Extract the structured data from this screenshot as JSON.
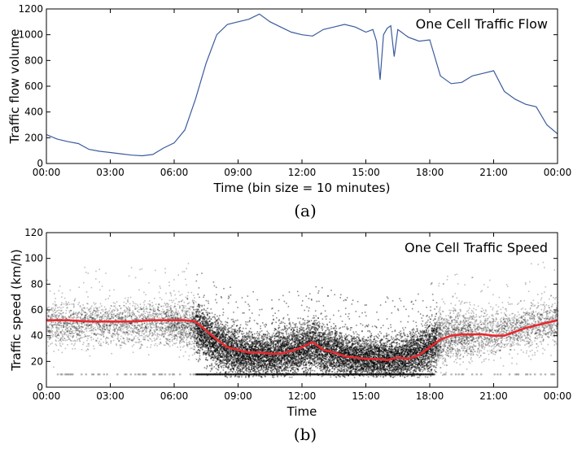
{
  "chart_data": [
    {
      "type": "line",
      "title": "One Cell Traffic Flow",
      "xlabel": "Time (bin size = 10 minutes)",
      "ylabel": "Traffic flow volume",
      "caption": "(a)",
      "xticks": [
        "00:00",
        "03:00",
        "06:00",
        "09:00",
        "12:00",
        "15:00",
        "18:00",
        "21:00",
        "00:00"
      ],
      "yticks": [
        "0",
        "200",
        "400",
        "600",
        "800",
        "1000",
        "1200"
      ],
      "xlim": [
        0,
        24
      ],
      "ylim": [
        0,
        1200
      ],
      "grid": false,
      "series": [
        {
          "color": "#3b5b9d",
          "x": [
            0,
            0.5,
            1,
            1.5,
            2,
            2.5,
            3,
            3.5,
            4,
            4.5,
            5,
            5.5,
            6,
            6.5,
            7,
            7.5,
            8,
            8.5,
            9,
            9.5,
            10,
            10.5,
            11,
            11.5,
            12,
            12.5,
            13,
            13.5,
            14,
            14.5,
            15,
            15.33,
            15.5,
            15.67,
            15.83,
            16,
            16.17,
            16.33,
            16.5,
            16.67,
            16.83,
            17,
            17.5,
            18,
            18.5,
            19,
            19.5,
            20,
            20.5,
            21,
            21.5,
            22,
            22.5,
            23,
            23.5,
            24
          ],
          "y": [
            225,
            190,
            170,
            155,
            110,
            95,
            85,
            75,
            65,
            60,
            70,
            120,
            160,
            260,
            500,
            780,
            1000,
            1080,
            1100,
            1120,
            1160,
            1100,
            1060,
            1020,
            1000,
            990,
            1040,
            1060,
            1080,
            1060,
            1020,
            1040,
            950,
            650,
            1000,
            1050,
            1070,
            830,
            1040,
            1020,
            1000,
            980,
            950,
            960,
            680,
            620,
            630,
            680,
            700,
            720,
            560,
            500,
            460,
            440,
            300,
            230
          ]
        }
      ]
    },
    {
      "type": "scatter",
      "title": "One Cell Traffic Speed",
      "xlabel": "Time",
      "ylabel": "Traffic speed (km/h)",
      "caption": "(b)",
      "xticks": [
        "00:00",
        "03:00",
        "06:00",
        "09:00",
        "12:00",
        "15:00",
        "18:00",
        "21:00",
        "00:00"
      ],
      "yticks": [
        "0",
        "20",
        "40",
        "60",
        "80",
        "100",
        "120"
      ],
      "xlim": [
        0,
        24
      ],
      "ylim": [
        0,
        120
      ],
      "grid": false,
      "series": [
        {
          "kind": "scatter",
          "color": "#000000",
          "spread": [
            [
              0,
              50,
              12
            ],
            [
              1,
              50,
              12
            ],
            [
              2,
              50,
              12
            ],
            [
              3,
              50,
              12
            ],
            [
              4,
              50,
              12
            ],
            [
              5,
              50,
              12
            ],
            [
              6,
              50,
              12
            ],
            [
              7,
              48,
              13
            ],
            [
              7.5,
              40,
              14
            ],
            [
              8,
              33,
              14
            ],
            [
              8.5,
              30,
              14
            ],
            [
              9,
              27,
              13
            ],
            [
              10,
              25,
              13
            ],
            [
              11,
              26,
              14
            ],
            [
              12,
              30,
              15
            ],
            [
              12.5,
              33,
              15
            ],
            [
              13,
              29,
              14
            ],
            [
              14,
              24,
              13
            ],
            [
              15,
              22,
              12
            ],
            [
              16,
              22,
              12
            ],
            [
              17,
              23,
              13
            ],
            [
              17.5,
              27,
              14
            ],
            [
              18,
              32,
              14
            ],
            [
              18.5,
              38,
              14
            ],
            [
              19,
              41,
              13
            ],
            [
              20,
              41,
              13
            ],
            [
              21,
              42,
              13
            ],
            [
              22,
              46,
              13
            ],
            [
              23,
              48,
              13
            ],
            [
              24,
              51,
              12
            ]
          ]
        },
        {
          "kind": "line",
          "color": "#e8292e",
          "x": [
            0,
            1,
            2,
            3,
            4,
            5,
            6,
            6.5,
            7,
            7.5,
            8,
            8.5,
            9,
            9.5,
            10,
            10.5,
            11,
            11.5,
            12,
            12.5,
            13,
            13.5,
            14,
            14.5,
            15,
            15.5,
            16,
            16.5,
            17,
            17.5,
            18,
            18.5,
            19,
            19.5,
            20,
            20.5,
            21,
            21.5,
            22,
            22.5,
            23,
            23.5,
            24
          ],
          "y": [
            52,
            52,
            51,
            51,
            51,
            52,
            52,
            52,
            51,
            44,
            37,
            31,
            29,
            27,
            27,
            26,
            26,
            28,
            31,
            35,
            29,
            27,
            24,
            23,
            22,
            22,
            21,
            23,
            22,
            25,
            31,
            37,
            40,
            41,
            41,
            41,
            40,
            40,
            43,
            46,
            48,
            50,
            52
          ]
        }
      ]
    }
  ]
}
